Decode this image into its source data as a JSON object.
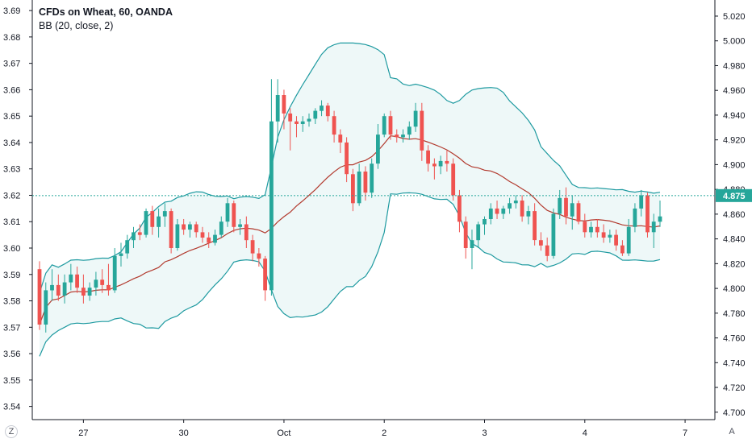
{
  "legend": {
    "title": "CFDs on Wheat, 60, OANDA",
    "indicator": "BB (20, close, 2)"
  },
  "controls": {
    "zoom_label": "Z",
    "autoscale_label": "A"
  },
  "colors": {
    "up": "#26a69a",
    "down": "#ef5350",
    "band": "#1e9aa0",
    "basis": "#b23a2e",
    "band_fill": "#eef8f8",
    "price_tag": "#26a69a"
  },
  "chart_data": {
    "type": "candlestick",
    "title": "CFDs on Wheat, 60, OANDA",
    "left_axis": {
      "ticks": [
        "3.54",
        "3.55",
        "3.56",
        "3.57",
        "3.58",
        "3.59",
        "3.60",
        "3.61",
        "3.62",
        "3.63",
        "3.64",
        "3.65",
        "3.66",
        "3.67",
        "3.68",
        "3.69"
      ],
      "range": [
        3.535,
        3.694
      ]
    },
    "right_axis": {
      "ticks": [
        "4.700",
        "4.720",
        "4.740",
        "4.760",
        "4.780",
        "4.800",
        "4.820",
        "4.840",
        "4.860",
        "4.880",
        "4.900",
        "4.920",
        "4.940",
        "4.960",
        "4.980",
        "5.000",
        "5.020"
      ],
      "range": [
        4.694,
        5.033
      ]
    },
    "x_labels": [
      "27",
      "30",
      "Oct",
      "2",
      "3",
      "4",
      "7"
    ],
    "last_price": "4.875",
    "indicator": {
      "name": "BB (20, close, 2)",
      "period": 20,
      "stddev": 2
    },
    "ohlc": [
      [
        3.592,
        3.595,
        3.569,
        3.571
      ],
      [
        3.571,
        3.587,
        3.568,
        3.584
      ],
      [
        3.584,
        3.592,
        3.58,
        3.586
      ],
      [
        3.586,
        3.59,
        3.58,
        3.582
      ],
      [
        3.582,
        3.59,
        3.579,
        3.587
      ],
      [
        3.587,
        3.594,
        3.584,
        3.59
      ],
      [
        3.59,
        3.593,
        3.583,
        3.585
      ],
      [
        3.585,
        3.59,
        3.579,
        3.582
      ],
      [
        3.582,
        3.587,
        3.58,
        3.585
      ],
      [
        3.585,
        3.591,
        3.582,
        3.588
      ],
      [
        3.588,
        3.592,
        3.583,
        3.586
      ],
      [
        3.586,
        3.594,
        3.582,
        3.584
      ],
      [
        3.584,
        3.6,
        3.583,
        3.597
      ],
      [
        3.597,
        3.602,
        3.593,
        3.598
      ],
      [
        3.598,
        3.605,
        3.596,
        3.603
      ],
      [
        3.603,
        3.608,
        3.6,
        3.606
      ],
      [
        3.606,
        3.609,
        3.603,
        3.605
      ],
      [
        3.605,
        3.615,
        3.604,
        3.614
      ],
      [
        3.614,
        3.616,
        3.605,
        3.608
      ],
      [
        3.608,
        3.615,
        3.604,
        3.612
      ],
      [
        3.612,
        3.617,
        3.608,
        3.614
      ],
      [
        3.614,
        3.615,
        3.598,
        3.6
      ],
      [
        3.6,
        3.611,
        3.599,
        3.609
      ],
      [
        3.609,
        3.611,
        3.605,
        3.607
      ],
      [
        3.607,
        3.61,
        3.604,
        3.609
      ],
      [
        3.609,
        3.61,
        3.604,
        3.606
      ],
      [
        3.606,
        3.608,
        3.602,
        3.604
      ],
      [
        3.604,
        3.606,
        3.6,
        3.602
      ],
      [
        3.602,
        3.607,
        3.601,
        3.605
      ],
      [
        3.605,
        3.612,
        3.604,
        3.61
      ],
      [
        3.61,
        3.619,
        3.608,
        3.617
      ],
      [
        3.617,
        3.618,
        3.606,
        3.608
      ],
      [
        3.608,
        3.611,
        3.605,
        3.609
      ],
      [
        3.609,
        3.612,
        3.6,
        3.603
      ],
      [
        3.603,
        3.605,
        3.595,
        3.598
      ],
      [
        3.598,
        3.6,
        3.593,
        3.596
      ],
      [
        3.596,
        3.597,
        3.58,
        3.584
      ],
      [
        3.584,
        3.664,
        3.582,
        3.648
      ],
      [
        3.648,
        3.664,
        3.64,
        3.658
      ],
      [
        3.658,
        3.66,
        3.645,
        3.651
      ],
      [
        3.651,
        3.653,
        3.637,
        3.648
      ],
      [
        3.648,
        3.65,
        3.642,
        3.647
      ],
      [
        3.647,
        3.65,
        3.644,
        3.648
      ],
      [
        3.648,
        3.651,
        3.646,
        3.649
      ],
      [
        3.649,
        3.653,
        3.647,
        3.652
      ],
      [
        3.652,
        3.656,
        3.65,
        3.654
      ],
      [
        3.654,
        3.655,
        3.648,
        3.65
      ],
      [
        3.65,
        3.652,
        3.64,
        3.643
      ],
      [
        3.643,
        3.645,
        3.636,
        3.64
      ],
      [
        3.64,
        3.642,
        3.625,
        3.628
      ],
      [
        3.628,
        3.63,
        3.614,
        3.617
      ],
      [
        3.617,
        3.632,
        3.616,
        3.629
      ],
      [
        3.629,
        3.631,
        3.618,
        3.621
      ],
      [
        3.621,
        3.634,
        3.619,
        3.632
      ],
      [
        3.632,
        3.647,
        3.63,
        3.643
      ],
      [
        3.643,
        3.651,
        3.642,
        3.65
      ],
      [
        3.65,
        3.652,
        3.641,
        3.643
      ],
      [
        3.643,
        3.645,
        3.64,
        3.642
      ],
      [
        3.642,
        3.645,
        3.64,
        3.643
      ],
      [
        3.643,
        3.648,
        3.641,
        3.646
      ],
      [
        3.646,
        3.655,
        3.644,
        3.652
      ],
      [
        3.652,
        3.655,
        3.633,
        3.637
      ],
      [
        3.637,
        3.639,
        3.629,
        3.632
      ],
      [
        3.632,
        3.634,
        3.626,
        3.631
      ],
      [
        3.631,
        3.635,
        3.628,
        3.633
      ],
      [
        3.633,
        3.637,
        3.629,
        3.632
      ],
      [
        3.632,
        3.634,
        3.618,
        3.62
      ],
      [
        3.62,
        3.622,
        3.606,
        3.61
      ],
      [
        3.61,
        3.612,
        3.596,
        3.6
      ],
      [
        3.6,
        3.607,
        3.592,
        3.603
      ],
      [
        3.603,
        3.61,
        3.6,
        3.609
      ],
      [
        3.609,
        3.612,
        3.605,
        3.611
      ],
      [
        3.611,
        3.617,
        3.609,
        3.615
      ],
      [
        3.615,
        3.618,
        3.611,
        3.613
      ],
      [
        3.613,
        3.616,
        3.611,
        3.615
      ],
      [
        3.615,
        3.619,
        3.613,
        3.617
      ],
      [
        3.617,
        3.62,
        3.615,
        3.618
      ],
      [
        3.618,
        3.62,
        3.61,
        3.612
      ],
      [
        3.612,
        3.616,
        3.609,
        3.614
      ],
      [
        3.614,
        3.617,
        3.601,
        3.603
      ],
      [
        3.603,
        3.606,
        3.599,
        3.601
      ],
      [
        3.601,
        3.604,
        3.595,
        3.597
      ],
      [
        3.597,
        3.615,
        3.596,
        3.613
      ],
      [
        3.613,
        3.622,
        3.611,
        3.619
      ],
      [
        3.619,
        3.623,
        3.609,
        3.612
      ],
      [
        3.612,
        3.62,
        3.607,
        3.617
      ],
      [
        3.617,
        3.618,
        3.609,
        3.61
      ],
      [
        3.61,
        3.613,
        3.604,
        3.606
      ],
      [
        3.606,
        3.61,
        3.604,
        3.608
      ],
      [
        3.608,
        3.611,
        3.604,
        3.606
      ],
      [
        3.606,
        3.609,
        3.602,
        3.604
      ],
      [
        3.604,
        3.607,
        3.602,
        3.605
      ],
      [
        3.605,
        3.607,
        3.599,
        3.601
      ],
      [
        3.601,
        3.603,
        3.597,
        3.598
      ],
      [
        3.598,
        3.611,
        3.597,
        3.608
      ],
      [
        3.608,
        3.617,
        3.606,
        3.615
      ],
      [
        3.615,
        3.622,
        3.612,
        3.62
      ],
      [
        3.62,
        3.621,
        3.604,
        3.606
      ],
      [
        3.606,
        3.613,
        3.6,
        3.61
      ],
      [
        3.61,
        3.618,
        3.608,
        3.612
      ]
    ]
  }
}
